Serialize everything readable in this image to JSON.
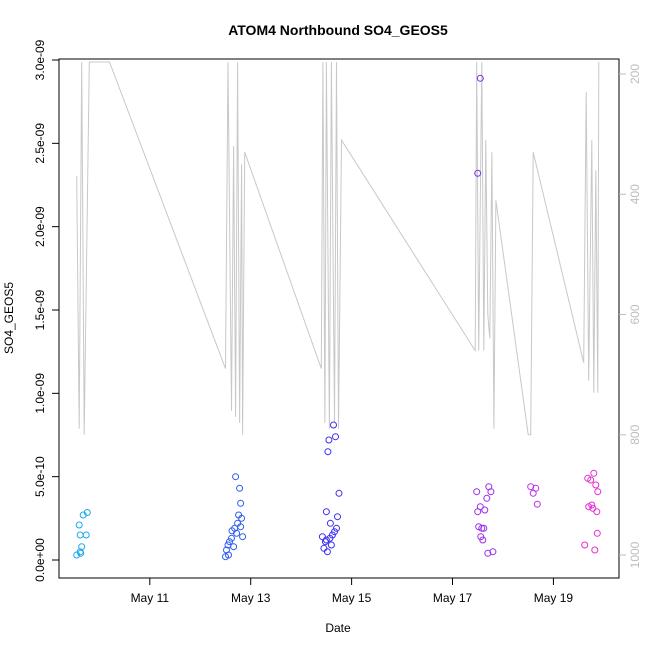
{
  "chart_data": {
    "type": "scatter",
    "title": "ATOM4 Northbound SO4_GEOS5",
    "xlabel": "Date",
    "ylabel": "SO4_GEOS5",
    "x_unit": "day of May",
    "xlim": [
      9.2,
      20.3
    ],
    "ylim": [
      0,
      3e-09
    ],
    "x_ticks": [
      {
        "value": 11,
        "label": "May 11"
      },
      {
        "value": 13,
        "label": "May 13"
      },
      {
        "value": 15,
        "label": "May 15"
      },
      {
        "value": 17,
        "label": "May 17"
      },
      {
        "value": 19,
        "label": "May 19"
      }
    ],
    "y_ticks": [
      {
        "value": 0,
        "label": "0.0e+00"
      },
      {
        "value": 5e-10,
        "label": "5.0e-10"
      },
      {
        "value": 1e-09,
        "label": "1.0e-09"
      },
      {
        "value": 1.5e-09,
        "label": "1.5e-09"
      },
      {
        "value": 2e-09,
        "label": "2.0e-09"
      },
      {
        "value": 2.5e-09,
        "label": "2.5e-09"
      },
      {
        "value": 3e-09,
        "label": "3.0e-09"
      }
    ],
    "secondary_axis": {
      "description": "pressure (hPa), inverted, gray line",
      "range": [
        180,
        1010
      ],
      "ticks": [
        {
          "value": 200,
          "label": "200"
        },
        {
          "value": 400,
          "label": "400"
        },
        {
          "value": 600,
          "label": "600"
        },
        {
          "value": 800,
          "label": "800"
        },
        {
          "value": 1000,
          "label": "1000"
        }
      ]
    },
    "series": [
      {
        "name": "SO4_GEOS5",
        "kind": "points",
        "color_note": "color shifts from light blue to blue to purple to magenta with time",
        "points": [
          {
            "x": 9.55,
            "y": 3e-11,
            "color": "#1ea8ef"
          },
          {
            "x": 9.62,
            "y": 5e-11,
            "color": "#1ea8ef"
          },
          {
            "x": 9.65,
            "y": 8e-11,
            "color": "#1ea8ef"
          },
          {
            "x": 9.6,
            "y": 2.1e-10,
            "color": "#1ea8ef"
          },
          {
            "x": 9.62,
            "y": 1.5e-10,
            "color": "#1ea8ef"
          },
          {
            "x": 9.68,
            "y": 2.7e-10,
            "color": "#1ea8ef"
          },
          {
            "x": 9.74,
            "y": 1.5e-10,
            "color": "#1ea8ef"
          },
          {
            "x": 9.76,
            "y": 2.85e-10,
            "color": "#1ea8ef"
          },
          {
            "x": 9.63,
            "y": 4e-11,
            "color": "#1ea8ef"
          },
          {
            "x": 12.5,
            "y": 2e-11,
            "color": "#2b5cf0"
          },
          {
            "x": 12.52,
            "y": 6e-11,
            "color": "#2b5cf0"
          },
          {
            "x": 12.55,
            "y": 9e-11,
            "color": "#2b5cf0"
          },
          {
            "x": 12.56,
            "y": 3e-11,
            "color": "#2b5cf0"
          },
          {
            "x": 12.58,
            "y": 1.1e-10,
            "color": "#2b5cf0"
          },
          {
            "x": 12.62,
            "y": 1.3e-10,
            "color": "#2b5cf0"
          },
          {
            "x": 12.63,
            "y": 1.75e-10,
            "color": "#2b5cf0"
          },
          {
            "x": 12.66,
            "y": 8e-11,
            "color": "#2b5cf0"
          },
          {
            "x": 12.68,
            "y": 1.9e-10,
            "color": "#2b5cf0"
          },
          {
            "x": 12.7,
            "y": 5e-10,
            "color": "#2b5cf0"
          },
          {
            "x": 12.72,
            "y": 1.6e-10,
            "color": "#2b5cf0"
          },
          {
            "x": 12.74,
            "y": 2.2e-10,
            "color": "#2b5cf0"
          },
          {
            "x": 12.76,
            "y": 2.7e-10,
            "color": "#2b5cf0"
          },
          {
            "x": 12.78,
            "y": 4.3e-10,
            "color": "#2b5cf0"
          },
          {
            "x": 12.8,
            "y": 3.4e-10,
            "color": "#2b5cf0"
          },
          {
            "x": 12.82,
            "y": 2.5e-10,
            "color": "#2b5cf0"
          },
          {
            "x": 12.84,
            "y": 1.4e-10,
            "color": "#2b5cf0"
          },
          {
            "x": 12.8,
            "y": 2e-10,
            "color": "#2b5cf0"
          },
          {
            "x": 14.42,
            "y": 1.4e-10,
            "color": "#3d2ff0"
          },
          {
            "x": 14.45,
            "y": 7e-11,
            "color": "#3d2ff0"
          },
          {
            "x": 14.48,
            "y": 1.1e-10,
            "color": "#3d2ff0"
          },
          {
            "x": 14.5,
            "y": 2.9e-10,
            "color": "#3d2ff0"
          },
          {
            "x": 14.52,
            "y": 5e-11,
            "color": "#3d2ff0"
          },
          {
            "x": 14.53,
            "y": 6.5e-10,
            "color": "#3d2ff0"
          },
          {
            "x": 14.55,
            "y": 7.2e-10,
            "color": "#3d2ff0"
          },
          {
            "x": 14.57,
            "y": 1.3e-10,
            "color": "#3d2ff0"
          },
          {
            "x": 14.58,
            "y": 2.2e-10,
            "color": "#3d2ff0"
          },
          {
            "x": 14.6,
            "y": 9e-11,
            "color": "#3d2ff0"
          },
          {
            "x": 14.62,
            "y": 1.5e-10,
            "color": "#3d2ff0"
          },
          {
            "x": 14.64,
            "y": 8.1e-10,
            "color": "#3d2ff0"
          },
          {
            "x": 14.66,
            "y": 1.7e-10,
            "color": "#3d2ff0"
          },
          {
            "x": 14.68,
            "y": 7.4e-10,
            "color": "#3d2ff0"
          },
          {
            "x": 14.7,
            "y": 1.9e-10,
            "color": "#3d2ff0"
          },
          {
            "x": 14.72,
            "y": 2.6e-10,
            "color": "#3d2ff0"
          },
          {
            "x": 14.75,
            "y": 4e-10,
            "color": "#3d2ff0"
          },
          {
            "x": 14.5,
            "y": 1.2e-10,
            "color": "#3d2ff0"
          },
          {
            "x": 17.48,
            "y": 4.1e-10,
            "color": "#9c2ef0"
          },
          {
            "x": 17.5,
            "y": 2.9e-10,
            "color": "#9c2ef0"
          },
          {
            "x": 17.52,
            "y": 2e-10,
            "color": "#9c2ef0"
          },
          {
            "x": 17.5,
            "y": 2.32e-09,
            "color": "#7a2ff0"
          },
          {
            "x": 17.55,
            "y": 2.89e-09,
            "color": "#7a2ff0"
          },
          {
            "x": 17.55,
            "y": 3.2e-10,
            "color": "#9c2ef0"
          },
          {
            "x": 17.56,
            "y": 1.4e-10,
            "color": "#9c2ef0"
          },
          {
            "x": 17.58,
            "y": 1.9e-10,
            "color": "#9c2ef0"
          },
          {
            "x": 17.6,
            "y": 1.2e-10,
            "color": "#9c2ef0"
          },
          {
            "x": 17.62,
            "y": 1.9e-10,
            "color": "#9c2ef0"
          },
          {
            "x": 17.64,
            "y": 3e-10,
            "color": "#9c2ef0"
          },
          {
            "x": 17.68,
            "y": 3.7e-10,
            "color": "#9c2ef0"
          },
          {
            "x": 17.7,
            "y": 4e-11,
            "color": "#9c2ef0"
          },
          {
            "x": 17.72,
            "y": 4.4e-10,
            "color": "#9c2ef0"
          },
          {
            "x": 17.76,
            "y": 4.1e-10,
            "color": "#9c2ef0"
          },
          {
            "x": 17.8,
            "y": 5e-11,
            "color": "#9c2ef0"
          },
          {
            "x": 18.55,
            "y": 4.4e-10,
            "color": "#c02ee8"
          },
          {
            "x": 18.6,
            "y": 4e-10,
            "color": "#c02ee8"
          },
          {
            "x": 18.65,
            "y": 4.3e-10,
            "color": "#c02ee8"
          },
          {
            "x": 18.68,
            "y": 3.35e-10,
            "color": "#c02ee8"
          },
          {
            "x": 19.62,
            "y": 9e-11,
            "color": "#e52fd0"
          },
          {
            "x": 19.68,
            "y": 4.9e-10,
            "color": "#e52fd0"
          },
          {
            "x": 19.7,
            "y": 3.2e-10,
            "color": "#e52fd0"
          },
          {
            "x": 19.74,
            "y": 4.8e-10,
            "color": "#e52fd0"
          },
          {
            "x": 19.76,
            "y": 3.3e-10,
            "color": "#e52fd0"
          },
          {
            "x": 19.78,
            "y": 3.1e-10,
            "color": "#e52fd0"
          },
          {
            "x": 19.8,
            "y": 5.2e-10,
            "color": "#e52fd0"
          },
          {
            "x": 19.82,
            "y": 6e-11,
            "color": "#e52fd0"
          },
          {
            "x": 19.84,
            "y": 4.5e-10,
            "color": "#e52fd0"
          },
          {
            "x": 19.86,
            "y": 2.9e-10,
            "color": "#e52fd0"
          },
          {
            "x": 19.87,
            "y": 1.6e-10,
            "color": "#e52fd0"
          },
          {
            "x": 19.88,
            "y": 4.1e-10,
            "color": "#e52fd0"
          }
        ]
      },
      {
        "name": "Pressure",
        "kind": "line",
        "axis": "secondary",
        "color": "#c8c8c8",
        "points": [
          {
            "x": 9.55,
            "p": 370
          },
          {
            "x": 9.6,
            "p": 790
          },
          {
            "x": 9.65,
            "p": 180
          },
          {
            "x": 9.7,
            "p": 800
          },
          {
            "x": 9.8,
            "p": 180
          },
          {
            "x": 10.2,
            "p": 180
          },
          {
            "x": 12.5,
            "p": 690
          },
          {
            "x": 12.55,
            "p": 180
          },
          {
            "x": 12.62,
            "p": 760
          },
          {
            "x": 12.66,
            "p": 320
          },
          {
            "x": 12.7,
            "p": 770
          },
          {
            "x": 12.74,
            "p": 180
          },
          {
            "x": 12.78,
            "p": 780
          },
          {
            "x": 12.82,
            "p": 350
          },
          {
            "x": 12.84,
            "p": 800
          },
          {
            "x": 12.88,
            "p": 330
          },
          {
            "x": 14.4,
            "p": 690
          },
          {
            "x": 14.43,
            "p": 180
          },
          {
            "x": 14.47,
            "p": 780
          },
          {
            "x": 14.5,
            "p": 180
          },
          {
            "x": 14.56,
            "p": 790
          },
          {
            "x": 14.6,
            "p": 180
          },
          {
            "x": 14.66,
            "p": 780
          },
          {
            "x": 14.7,
            "p": 180
          },
          {
            "x": 14.74,
            "p": 790
          },
          {
            "x": 14.8,
            "p": 310
          },
          {
            "x": 17.45,
            "p": 660
          },
          {
            "x": 17.48,
            "p": 180
          },
          {
            "x": 17.52,
            "p": 660
          },
          {
            "x": 17.58,
            "p": 180
          },
          {
            "x": 17.62,
            "p": 660
          },
          {
            "x": 17.66,
            "p": 310
          },
          {
            "x": 17.7,
            "p": 600
          },
          {
            "x": 17.74,
            "p": 640
          },
          {
            "x": 17.78,
            "p": 330
          },
          {
            "x": 17.82,
            "p": 790
          },
          {
            "x": 17.86,
            "p": 410
          },
          {
            "x": 18.5,
            "p": 800
          },
          {
            "x": 18.55,
            "p": 800
          },
          {
            "x": 18.6,
            "p": 330
          },
          {
            "x": 19.6,
            "p": 680
          },
          {
            "x": 19.65,
            "p": 230
          },
          {
            "x": 19.7,
            "p": 710
          },
          {
            "x": 19.76,
            "p": 310
          },
          {
            "x": 19.8,
            "p": 730
          },
          {
            "x": 19.84,
            "p": 360
          },
          {
            "x": 19.88,
            "p": 730
          },
          {
            "x": 19.9,
            "p": 180
          }
        ]
      }
    ]
  }
}
